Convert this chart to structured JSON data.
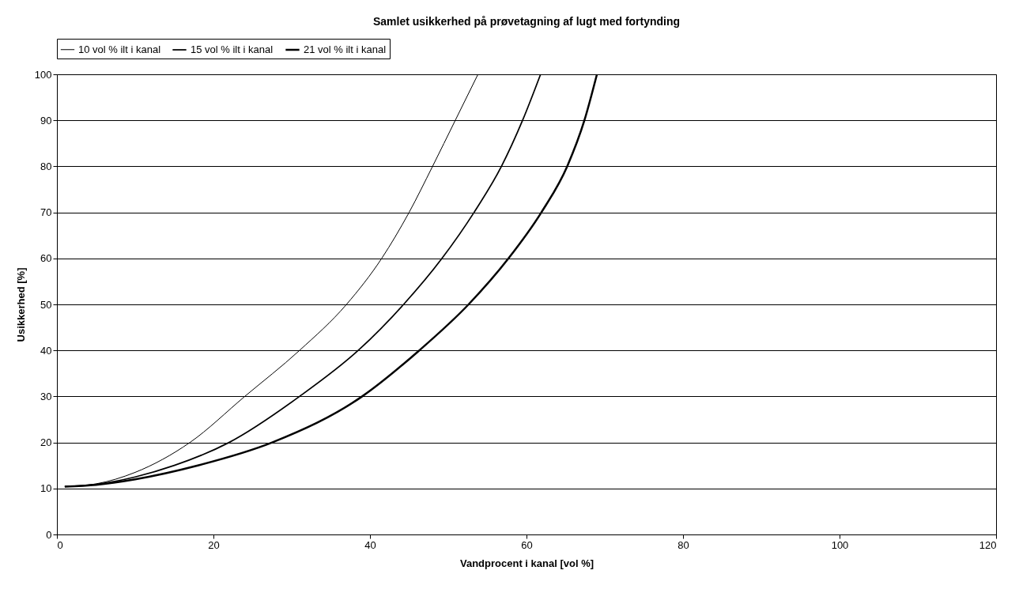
{
  "chart_data": {
    "type": "line",
    "title": "Samlet usikkerhed på prøvetagning af lugt med fortynding",
    "xlabel": "Vandprocent i kanal [vol %]",
    "ylabel": "Usikkerhed [%]",
    "xlim": [
      0,
      120
    ],
    "ylim": [
      0,
      100
    ],
    "xticks": [
      0,
      20,
      40,
      60,
      80,
      100,
      120
    ],
    "yticks": [
      0,
      10,
      20,
      30,
      40,
      50,
      60,
      70,
      80,
      90,
      100
    ],
    "grid": "y",
    "legend": "top",
    "marker": "none",
    "line_style": "solid",
    "series": [
      {
        "name": "10 vol % ilt i kanal",
        "color": "#000000",
        "x": [
          1,
          5,
          10,
          17,
          24,
          31,
          37,
          41.5,
          45,
          48,
          50.9,
          53.8
        ],
        "values": [
          10.4,
          11,
          13.5,
          20,
          30,
          40,
          50,
          60,
          70,
          80,
          90,
          100
        ]
      },
      {
        "name": "15 vol % ilt i kanal",
        "color": "#000000",
        "x": [
          1,
          5,
          10,
          15,
          22,
          31,
          38.5,
          44.3,
          49.2,
          53.3,
          56.8,
          59.5,
          61.8
        ],
        "values": [
          10.4,
          10.9,
          12.5,
          15,
          20,
          30,
          40,
          50,
          60,
          70,
          80,
          90,
          100
        ]
      },
      {
        "name": "21 vol % ilt i kanal",
        "color": "#000000",
        "x": [
          1,
          5,
          10,
          18,
          27.5,
          39,
          46.3,
          52.6,
          57.7,
          61.9,
          65.2,
          67.4,
          69
        ],
        "values": [
          10.4,
          10.8,
          12,
          15,
          20,
          30,
          40,
          50,
          60,
          70,
          80,
          90,
          100
        ]
      }
    ]
  }
}
